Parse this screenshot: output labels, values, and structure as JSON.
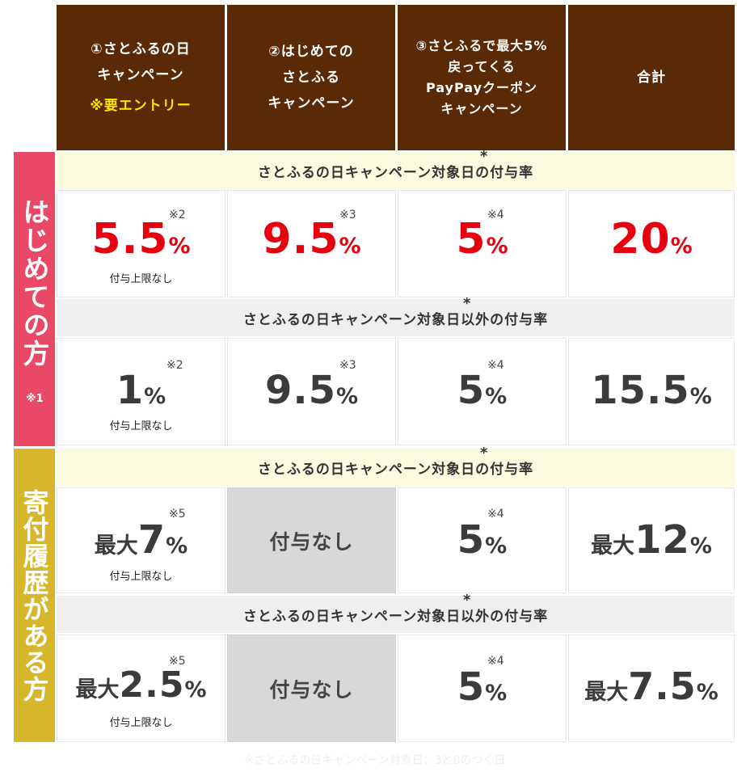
{
  "header": {
    "col1": {
      "lines": [
        "①さとふるの日",
        "キャンペーン"
      ],
      "entry": "※要エントリー"
    },
    "col2": {
      "lines": [
        "②はじめての",
        "さとふる",
        "キャンペーン"
      ]
    },
    "col3": {
      "lines": [
        "③さとふるで最大5%",
        "戻ってくる",
        "PayPayクーポン",
        "キャンペーン"
      ]
    },
    "col4": {
      "lines": [
        "合計"
      ]
    }
  },
  "sections": {
    "first_time": {
      "label": "はじめての方",
      "note": "※1"
    },
    "history": {
      "label": "寄付履歴がある方"
    }
  },
  "bars": {
    "target": "さとふるの日キャンペーン対象日の付与率",
    "non_target": "さとふるの日キャンペーン対象日以外の付与率",
    "asterisk": "*"
  },
  "rows": {
    "first_target": {
      "c1": {
        "value": "5.5",
        "unit": "%",
        "note": "※2",
        "sub": "付与上限なし"
      },
      "c2": {
        "value": "9.5",
        "unit": "%",
        "note": "※3"
      },
      "c3": {
        "value": "5",
        "unit": "%",
        "note": "※4"
      },
      "c4": {
        "value": "20",
        "unit": "%"
      }
    },
    "first_non_target": {
      "c1": {
        "value": "1",
        "unit": "%",
        "note": "※2",
        "sub": "付与上限なし"
      },
      "c2": {
        "value": "9.5",
        "unit": "%",
        "note": "※3"
      },
      "c3": {
        "value": "5",
        "unit": "%",
        "note": "※4"
      },
      "c4": {
        "value": "15.5",
        "unit": "%"
      }
    },
    "history_target": {
      "c1": {
        "prefix": "最大",
        "value": "7",
        "unit": "%",
        "note": "※5",
        "sub": "付与上限なし"
      },
      "c2": {
        "text": "付与なし"
      },
      "c3": {
        "value": "5",
        "unit": "%",
        "note": "※4"
      },
      "c4": {
        "prefix": "最大",
        "value": "12",
        "unit": "%"
      }
    },
    "history_non_target": {
      "c1": {
        "prefix": "最大",
        "value": "2.5",
        "unit": "%",
        "note": "※5",
        "sub": "付与上限なし"
      },
      "c2": {
        "text": "付与なし"
      },
      "c3": {
        "value": "5",
        "unit": "%",
        "note": "※4"
      },
      "c4": {
        "prefix": "最大",
        "value": "7.5",
        "unit": "%"
      }
    }
  },
  "footnote": "※さとふるの日キャンペーン対象日：3と8のつく日",
  "colors": {
    "header_bg": "#5a2a07",
    "entry_text": "#ffe500",
    "first_time_side": "#e94866",
    "history_side": "#d6b72b",
    "highlight_red": "#e8000f",
    "no_grant_bg": "#d8d8d8"
  }
}
